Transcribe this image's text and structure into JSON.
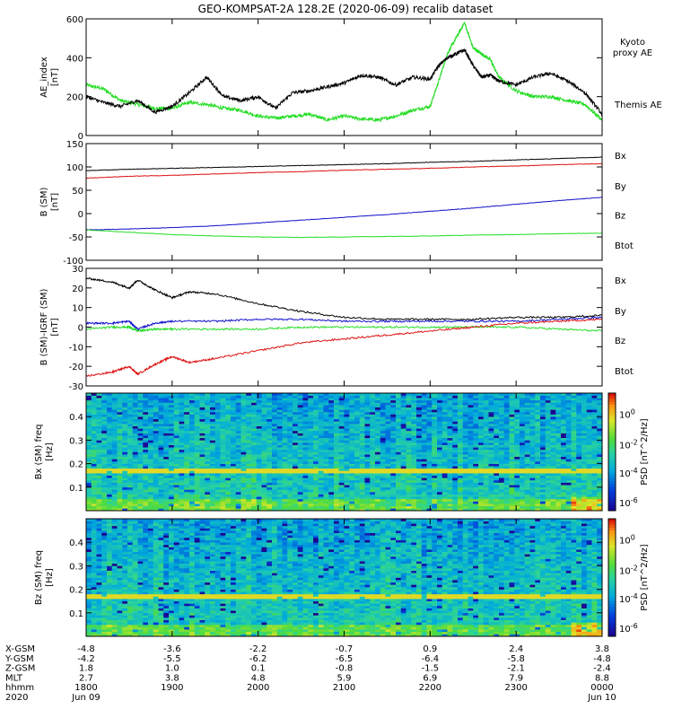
{
  "title": "GEO-KOMPSAT-2A 128.2E (2020-06-09) recalib dataset",
  "colors": {
    "black": "#000000",
    "green": "#22dd22",
    "red": "#dd1111",
    "blue": "#1111cc"
  },
  "chart_data": [
    {
      "type": "line",
      "id": "ae",
      "ylabel": "AE_index [nT]",
      "ylim": [
        0,
        600
      ],
      "yticks": [
        0,
        200,
        400,
        600
      ],
      "xlim": [
        0,
        6
      ],
      "legend": [
        {
          "name": "Kyoto proxy AE",
          "color": "#22dd22"
        },
        {
          "name": "Themis AE",
          "color": "#000000"
        }
      ],
      "series": [
        {
          "name": "Kyoto proxy AE",
          "color": "#22dd22",
          "x": [
            0,
            0.2,
            0.4,
            0.6,
            0.8,
            1.0,
            1.2,
            1.4,
            1.6,
            1.8,
            2.0,
            2.2,
            2.4,
            2.6,
            2.8,
            3.0,
            3.2,
            3.4,
            3.6,
            3.8,
            4.0,
            4.1,
            4.2,
            4.3,
            4.4,
            4.5,
            4.6,
            4.7,
            4.8,
            5.0,
            5.2,
            5.4,
            5.6,
            5.8,
            6.0
          ],
          "y": [
            260,
            240,
            180,
            160,
            140,
            140,
            170,
            160,
            140,
            130,
            100,
            90,
            100,
            110,
            80,
            100,
            85,
            80,
            100,
            130,
            150,
            280,
            420,
            500,
            580,
            450,
            420,
            390,
            300,
            230,
            200,
            200,
            180,
            160,
            80
          ]
        },
        {
          "name": "Themis AE",
          "color": "#000000",
          "x": [
            0,
            0.2,
            0.4,
            0.6,
            0.8,
            1.0,
            1.2,
            1.4,
            1.6,
            1.8,
            2.0,
            2.2,
            2.4,
            2.6,
            2.8,
            3.0,
            3.2,
            3.4,
            3.6,
            3.8,
            4.0,
            4.1,
            4.2,
            4.3,
            4.4,
            4.5,
            4.6,
            4.7,
            4.8,
            5.0,
            5.2,
            5.4,
            5.6,
            5.8,
            6.0
          ],
          "y": [
            200,
            170,
            150,
            180,
            120,
            150,
            220,
            300,
            200,
            180,
            200,
            140,
            220,
            230,
            250,
            270,
            310,
            300,
            260,
            300,
            290,
            360,
            400,
            420,
            440,
            360,
            300,
            310,
            280,
            260,
            300,
            320,
            280,
            220,
            110
          ]
        }
      ]
    },
    {
      "type": "line",
      "id": "bsm",
      "ylabel": "B (SM) [nT]",
      "ylim": [
        -100,
        150
      ],
      "yticks": [
        -100,
        -50,
        0,
        50,
        100,
        150
      ],
      "xlim": [
        0,
        6
      ],
      "legend": [
        {
          "name": "Bx",
          "color": "#1111cc"
        },
        {
          "name": "By",
          "color": "#22dd22"
        },
        {
          "name": "Bz",
          "color": "#dd1111"
        },
        {
          "name": "Btot",
          "color": "#000000"
        }
      ],
      "series": [
        {
          "name": "Bx",
          "color": "#1111cc",
          "x": [
            0,
            0.5,
            1.0,
            1.5,
            2.0,
            2.5,
            3.0,
            3.5,
            4.0,
            4.5,
            5.0,
            5.5,
            6.0
          ],
          "y": [
            -35,
            -33,
            -30,
            -26,
            -20,
            -14,
            -8,
            -2,
            5,
            12,
            20,
            28,
            35
          ]
        },
        {
          "name": "By",
          "color": "#22dd22",
          "x": [
            0,
            0.5,
            1.0,
            1.5,
            2.0,
            2.5,
            3.0,
            3.5,
            4.0,
            4.5,
            5.0,
            5.5,
            6.0
          ],
          "y": [
            -35,
            -40,
            -45,
            -48,
            -50,
            -51,
            -50,
            -49,
            -48,
            -46,
            -45,
            -43,
            -42
          ]
        },
        {
          "name": "Bz",
          "color": "#dd1111",
          "x": [
            0,
            0.5,
            1.0,
            1.5,
            2.0,
            2.5,
            3.0,
            3.5,
            4.0,
            4.5,
            5.0,
            5.5,
            6.0
          ],
          "y": [
            76,
            80,
            82,
            85,
            88,
            90,
            93,
            95,
            97,
            100,
            102,
            105,
            107
          ]
        },
        {
          "name": "Btot",
          "color": "#000000",
          "x": [
            0,
            0.5,
            1.0,
            1.5,
            2.0,
            2.5,
            3.0,
            3.5,
            4.0,
            4.5,
            5.0,
            5.5,
            6.0
          ],
          "y": [
            92,
            95,
            97,
            99,
            101,
            103,
            105,
            107,
            110,
            112,
            115,
            118,
            121
          ]
        }
      ]
    },
    {
      "type": "line",
      "id": "bdiff",
      "ylabel": "B (SM)-IGRF (SM) [nT]",
      "ylim": [
        -30,
        30
      ],
      "yticks": [
        -30,
        -20,
        -10,
        0,
        10,
        20,
        30
      ],
      "xlim": [
        0,
        6
      ],
      "legend": [
        {
          "name": "Bx",
          "color": "#1111cc"
        },
        {
          "name": "By",
          "color": "#22dd22"
        },
        {
          "name": "Bz",
          "color": "#dd1111"
        },
        {
          "name": "Btot",
          "color": "#000000"
        }
      ],
      "series": [
        {
          "name": "Bx",
          "color": "#1111cc",
          "x": [
            0,
            0.3,
            0.5,
            0.6,
            0.8,
            1.0,
            1.5,
            2.0,
            2.5,
            3.0,
            3.5,
            4.0,
            4.5,
            5.0,
            5.5,
            6.0
          ],
          "y": [
            2,
            2,
            3,
            -1,
            2,
            3,
            3,
            4,
            4,
            3,
            3,
            3,
            3,
            3,
            4,
            5
          ]
        },
        {
          "name": "By",
          "color": "#22dd22",
          "x": [
            0,
            0.3,
            0.5,
            0.6,
            0.8,
            1.0,
            1.5,
            2.0,
            2.5,
            3.0,
            3.5,
            4.0,
            4.5,
            5.0,
            5.5,
            6.0
          ],
          "y": [
            -1,
            0,
            0,
            -2,
            -1,
            -1,
            -1,
            -1,
            0,
            0,
            0,
            0,
            0,
            0,
            -1,
            -2
          ]
        },
        {
          "name": "Bz",
          "color": "#dd1111",
          "x": [
            0,
            0.3,
            0.5,
            0.6,
            0.8,
            1.0,
            1.2,
            1.5,
            2.0,
            2.5,
            3.0,
            3.5,
            4.0,
            4.5,
            5.0,
            5.5,
            6.0
          ],
          "y": [
            -25,
            -23,
            -20,
            -24,
            -19,
            -15,
            -18,
            -16,
            -12,
            -8,
            -6,
            -4,
            -2,
            0,
            2,
            3,
            4
          ]
        },
        {
          "name": "Btot",
          "color": "#000000",
          "x": [
            0,
            0.3,
            0.5,
            0.6,
            0.8,
            1.0,
            1.2,
            1.5,
            2.0,
            2.5,
            3.0,
            3.5,
            4.0,
            4.5,
            5.0,
            5.5,
            6.0
          ],
          "y": [
            25,
            23,
            20,
            24,
            19,
            15,
            18,
            17,
            12,
            8,
            5,
            4,
            4,
            4,
            5,
            5,
            6
          ]
        }
      ]
    },
    {
      "type": "heatmap",
      "id": "bx-spec",
      "ylabel": "Bx (SM) freq [Hz]",
      "ylim": [
        0,
        0.5
      ],
      "yticks": [
        0.1,
        0.2,
        0.3,
        0.4
      ],
      "xlim": [
        0,
        6
      ],
      "colorbar_label": "PSD [nT^2/Hz]",
      "colorbar_ticks": [
        "10^0",
        "10^-2",
        "10^-4",
        "10^-6"
      ],
      "feature_frequency_hz": 0.17
    },
    {
      "type": "heatmap",
      "id": "bz-spec",
      "ylabel": "Bz (SM) freq [Hz]",
      "ylim": [
        0,
        0.5
      ],
      "yticks": [
        0.1,
        0.2,
        0.3,
        0.4
      ],
      "xlim": [
        0,
        6
      ],
      "colorbar_label": "PSD [nT^2/Hz]",
      "colorbar_ticks": [
        "10^0",
        "10^-2",
        "10^-4",
        "10^-6"
      ],
      "feature_frequency_hz": 0.17
    }
  ],
  "ephemeris": {
    "labels": [
      "X-GSM",
      "Y-GSM",
      "Z-GSM",
      "MLT",
      "hhmm",
      "2020"
    ],
    "columns": [
      [
        "-4.8",
        "-4.2",
        "1.8",
        "2.7",
        "1800",
        "Jun 09"
      ],
      [
        "-3.6",
        "-5.5",
        "1.0",
        "3.8",
        "1900",
        ""
      ],
      [
        "-2.2",
        "-6.2",
        "0.1",
        "4.8",
        "2000",
        ""
      ],
      [
        "-0.7",
        "-6.5",
        "-0.8",
        "5.9",
        "2100",
        ""
      ],
      [
        "0.9",
        "-6.4",
        "-1.5",
        "6.9",
        "2200",
        ""
      ],
      [
        "2.4",
        "-5.8",
        "-2.1",
        "7.9",
        "2300",
        ""
      ],
      [
        "3.8",
        "-4.8",
        "-2.4",
        "8.8",
        "0000",
        "Jun 10"
      ]
    ]
  }
}
